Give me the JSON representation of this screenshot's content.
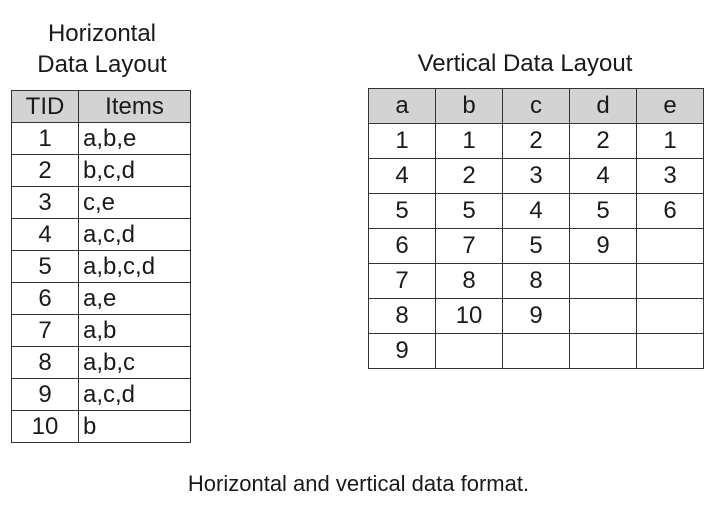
{
  "horizontal": {
    "title_line1": "Horizontal",
    "title_line2": "Data Layout",
    "headers": [
      "TID",
      "Items"
    ],
    "rows": [
      {
        "tid": "1",
        "items": "a,b,e"
      },
      {
        "tid": "2",
        "items": "b,c,d"
      },
      {
        "tid": "3",
        "items": "c,e"
      },
      {
        "tid": "4",
        "items": "a,c,d"
      },
      {
        "tid": "5",
        "items": "a,b,c,d"
      },
      {
        "tid": "6",
        "items": "a,e"
      },
      {
        "tid": "7",
        "items": "a,b"
      },
      {
        "tid": "8",
        "items": "a,b,c"
      },
      {
        "tid": "9",
        "items": "a,c,d"
      },
      {
        "tid": "10",
        "items": "b"
      }
    ]
  },
  "vertical": {
    "title": "Vertical Data Layout",
    "headers": [
      "a",
      "b",
      "c",
      "d",
      "e"
    ],
    "rows": [
      [
        "1",
        "1",
        "2",
        "2",
        "1"
      ],
      [
        "4",
        "2",
        "3",
        "4",
        "3"
      ],
      [
        "5",
        "5",
        "4",
        "5",
        "6"
      ],
      [
        "6",
        "7",
        "5",
        "9",
        ""
      ],
      [
        "7",
        "8",
        "8",
        "",
        ""
      ],
      [
        "8",
        "10",
        "9",
        "",
        ""
      ],
      [
        "9",
        "",
        "",
        "",
        ""
      ]
    ]
  },
  "caption": "Horizontal and vertical data format.",
  "colors": {
    "header_background": "#d3d3d3",
    "border": "#333333",
    "text": "#1a1a1a"
  }
}
